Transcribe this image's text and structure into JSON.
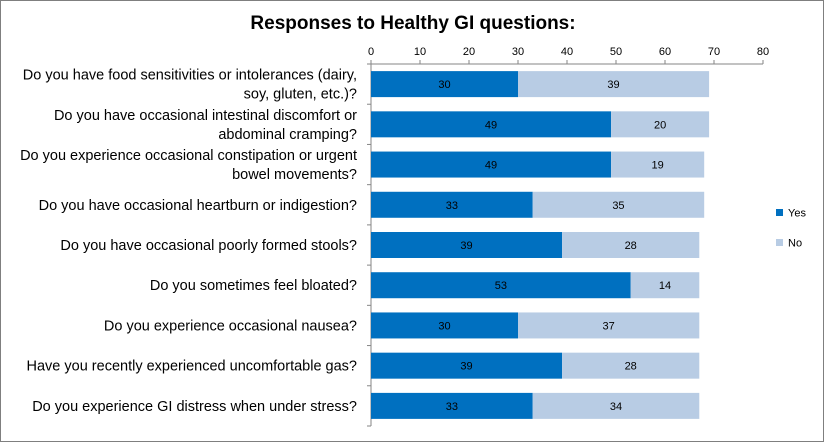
{
  "chart_data": {
    "type": "bar",
    "orientation": "horizontal",
    "stacked": true,
    "title": "Responses to Healthy GI questions:",
    "xlabel": "",
    "ylabel": "",
    "xlim": [
      0,
      80
    ],
    "ticks": [
      0,
      10,
      20,
      30,
      40,
      50,
      60,
      70,
      80
    ],
    "legend_position": "right",
    "categories": [
      [
        "Do you have food sensitivities or intolerances (dairy,",
        "soy, gluten, etc.)?"
      ],
      [
        "Do you have occasional intestinal discomfort or",
        "abdominal cramping?"
      ],
      [
        "Do you experience occasional constipation or urgent",
        "bowel movements?"
      ],
      [
        "Do you have occasional heartburn or indigestion?"
      ],
      [
        "Do you have occasional poorly formed stools?"
      ],
      [
        "Do you sometimes feel bloated?"
      ],
      [
        "Do you experience occasional nausea?"
      ],
      [
        "Have you recently experienced uncomfortable gas?"
      ],
      [
        "Do you experience GI distress when under stress?"
      ]
    ],
    "series": [
      {
        "name": "Yes",
        "color": "#0070c0",
        "values": [
          30,
          49,
          49,
          33,
          39,
          53,
          30,
          39,
          33
        ]
      },
      {
        "name": "No",
        "color": "#b8cce4",
        "values": [
          39,
          20,
          19,
          35,
          28,
          14,
          37,
          28,
          34
        ]
      }
    ]
  }
}
